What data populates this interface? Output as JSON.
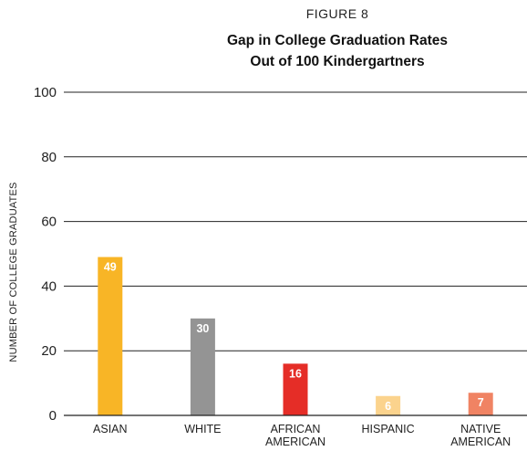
{
  "figure_label": "FIGURE 8",
  "chart_data": {
    "type": "bar",
    "title": "Gap in College Graduation Rates",
    "subtitle": "Out of 100 Kindergartners",
    "xlabel": "",
    "ylabel": "NUMBER OF COLLEGE GRADUATES",
    "ylim": [
      0,
      100
    ],
    "yticks": [
      0,
      20,
      40,
      60,
      80,
      100
    ],
    "grid": true,
    "categories": [
      [
        "ASIAN"
      ],
      [
        "WHITE"
      ],
      [
        "AFRICAN",
        "AMERICAN"
      ],
      [
        "HISPANIC"
      ],
      [
        "NATIVE",
        "AMERICAN"
      ]
    ],
    "values": [
      49,
      30,
      16,
      6,
      7
    ],
    "colors": [
      "#f8b526",
      "#949494",
      "#e52d27",
      "#fbd38d",
      "#f08363"
    ]
  }
}
